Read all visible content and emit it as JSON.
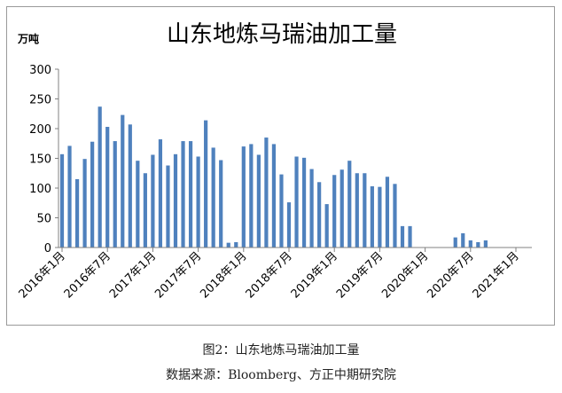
{
  "chart_data": {
    "type": "bar",
    "title": "山东地炼马瑞油加工量",
    "unit_label": "万吨",
    "ylim": [
      0,
      300
    ],
    "y_ticks": [
      0,
      50,
      100,
      150,
      200,
      250,
      300
    ],
    "x_ticks": [
      "2016年1月",
      "2016年7月",
      "2017年1月",
      "2017年7月",
      "2018年1月",
      "2018年7月",
      "2019年1月",
      "2019年7月",
      "2020年1月",
      "2020年7月",
      "2021年1月"
    ],
    "x_start": "2016-01",
    "x_end": "2021-01",
    "grid": false,
    "legend": "none",
    "bar_color": "#4f81bd",
    "series": [
      {
        "values": [
          157,
          171,
          115,
          149,
          178,
          237,
          203,
          179,
          223,
          207,
          146,
          125,
          156,
          182,
          138,
          157,
          179,
          179,
          153,
          214,
          168,
          147,
          8,
          9,
          170,
          174,
          156,
          185,
          174,
          123,
          76,
          153,
          151,
          132,
          110,
          73,
          122,
          131,
          146,
          125,
          125,
          103,
          102,
          119,
          107,
          36,
          36,
          null,
          null,
          null,
          null,
          null,
          17,
          24,
          12,
          9,
          12,
          null,
          null,
          null,
          null
        ]
      }
    ]
  },
  "captions": {
    "figure": "图2：山东地炼马瑞油加工量",
    "source": "数据来源：Bloomberg、方正中期研究院"
  }
}
